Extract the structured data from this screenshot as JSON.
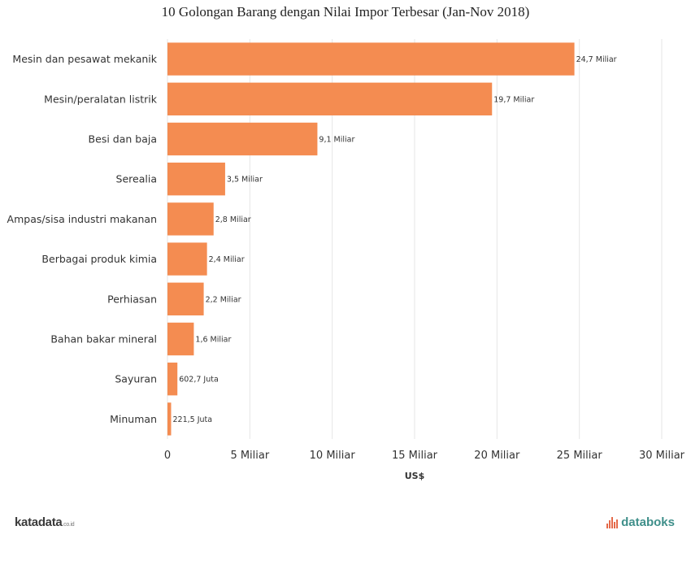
{
  "title": "10 Golongan Barang dengan Nilai Impor Terbesar (Jan-Nov 2018)",
  "chart_data": {
    "type": "bar",
    "orientation": "horizontal",
    "categories": [
      "Mesin dan pesawat mekanik",
      "Mesin/peralatan listrik",
      "Besi dan baja",
      "Serealia",
      "Ampas/sisa industri makanan",
      "Berbagai produk kimia",
      "Perhiasan",
      "Bahan bakar mineral",
      "Sayuran",
      "Minuman"
    ],
    "values": [
      24.7,
      19.7,
      9.1,
      3.5,
      2.8,
      2.4,
      2.2,
      1.6,
      0.6027,
      0.2215
    ],
    "data_labels": [
      "24,7 Miliar",
      "19,7 Miliar",
      "9,1 Miliar",
      "3,5 Miliar",
      "2,8 Miliar",
      "2,4 Miliar",
      "2,2 Miliar",
      "1,6 Miliar",
      "602,7 Juta",
      "221,5 Juta"
    ],
    "xlabel": "US$",
    "ylabel": "",
    "xlim": [
      0,
      30
    ],
    "xticks": [
      0,
      5,
      10,
      15,
      20,
      25,
      30
    ],
    "xtick_labels": [
      "0",
      "5 Miliar",
      "10 Miliar",
      "15 Miliar",
      "20 Miliar",
      "25 Miliar",
      "30 Miliar"
    ],
    "bar_color": "#f48c51",
    "grid": true,
    "legend": false
  },
  "footer": {
    "left_brand": "katadata",
    "left_brand_tld": ".co.id",
    "right_brand": "databoks"
  },
  "colors": {
    "bar": "#f48c51",
    "grid": "#e6e6e6",
    "text": "#333333",
    "brand_right": "#3f8f8a",
    "brand_icon": "#e56a4a"
  }
}
